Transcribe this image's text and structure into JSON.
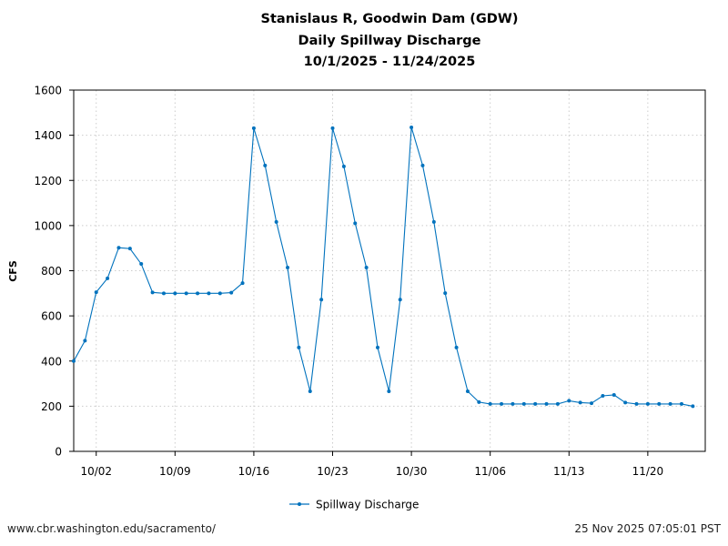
{
  "chart_data": {
    "type": "line",
    "title": [
      "Stanislaus R, Goodwin Dam (GDW)",
      "Daily Spillway Discharge",
      "10/1/2025 - 11/24/2025"
    ],
    "xlabel": "",
    "ylabel": "CFS",
    "ylim": [
      0,
      1600
    ],
    "yticks": [
      0,
      200,
      400,
      600,
      800,
      1000,
      1200,
      1400,
      1600
    ],
    "xtick_labels": [
      "10/02",
      "10/09",
      "10/16",
      "10/23",
      "10/30",
      "11/06",
      "11/13",
      "11/20"
    ],
    "xtick_day_index": [
      2,
      9,
      16,
      23,
      30,
      37,
      44,
      51
    ],
    "x_start_label": "9/30",
    "grid": true,
    "legend_position": "bottom-center",
    "series": [
      {
        "name": "Spillway Discharge",
        "color": "#0072bd",
        "values": [
          400,
          490,
          705,
          766,
          902,
          898,
          830,
          704,
          700,
          700,
          700,
          700,
          700,
          700,
          703,
          745,
          1431,
          1266,
          1016,
          814,
          460,
          266,
          672,
          1431,
          1262,
          1010,
          814,
          460,
          266,
          672,
          1435,
          1266,
          1016,
          701,
          460,
          266,
          218,
          210,
          210,
          210,
          210,
          210,
          210,
          210,
          224,
          216,
          213,
          246,
          250,
          216,
          210,
          210,
          210,
          210,
          210,
          200
        ]
      }
    ]
  },
  "footer": {
    "source": "www.cbr.washington.edu/sacramento/",
    "timestamp": "25 Nov 2025 07:05:01 PST"
  }
}
